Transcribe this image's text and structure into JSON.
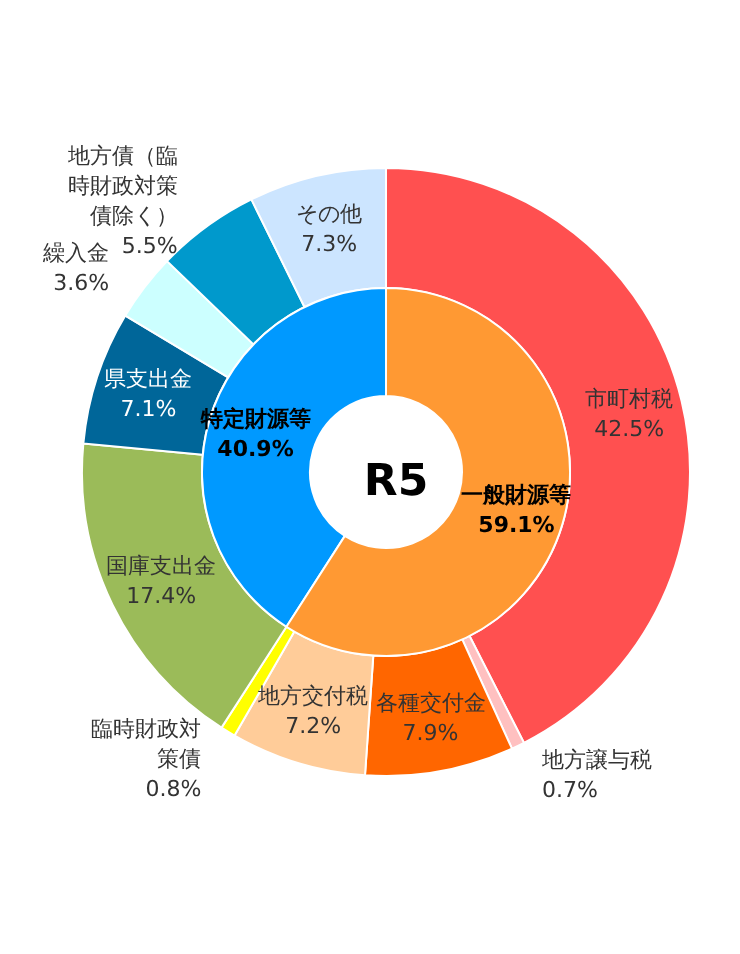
{
  "chart_data": [
    {
      "type": "donut",
      "categories": [
        "市町村税",
        "地方譲与税",
        "各種交付金",
        "地方交付税",
        "臨時財政対策債",
        "国庫支出金",
        "県支出金",
        "繰入金",
        "地方債（臨時財政対策債除く）",
        "その他"
      ],
      "values": [
        42.5,
        0.7,
        7.9,
        7.2,
        0.8,
        17.4,
        7.1,
        3.6,
        5.5,
        7.3
      ],
      "colors": [
        "#ff5050",
        "#ffc0c0",
        "#ff6600",
        "#ffcc99",
        "#ffff00",
        "#9bbb59",
        "#006699",
        "#ccffff",
        "#0099cc",
        "#cce5ff"
      ],
      "value_labels": [
        "42.5%",
        "0.7%",
        "7.9%",
        "7.2%",
        "0.8%",
        "17.4%",
        "7.1%",
        "3.6%",
        "5.5%",
        "7.3%"
      ],
      "legend": false
    },
    {
      "type": "donut",
      "title": "R5",
      "categories": [
        "特定財源等",
        "一般財源等"
      ],
      "values": [
        40.9,
        59.1
      ],
      "colors": [
        "#0099ff",
        "#ff9933"
      ],
      "value_labels": [
        "40.9%",
        "59.1%"
      ],
      "legend": false
    }
  ]
}
